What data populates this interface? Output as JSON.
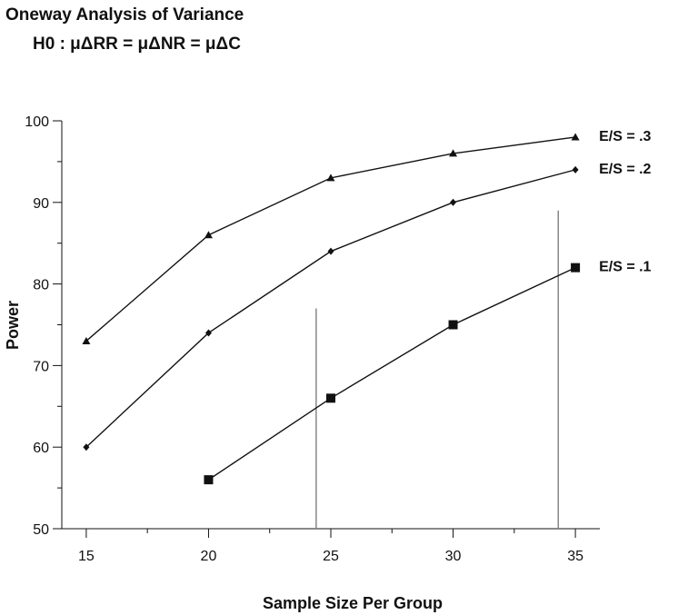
{
  "chart_data": {
    "type": "line",
    "title": "Oneway Analysis of Variance",
    "subtitle": "H0 :  μΔRR = μΔNR = μΔC",
    "xlabel": "Sample Size Per Group",
    "ylabel": "Power",
    "xlim": [
      14,
      36
    ],
    "ylim": [
      50,
      100
    ],
    "x_ticks": [
      15,
      20,
      25,
      30,
      35
    ],
    "y_ticks": [
      50,
      60,
      70,
      80,
      90,
      100
    ],
    "grid": false,
    "series": [
      {
        "name": "E/S = .3",
        "marker": "triangle",
        "x": [
          15,
          20,
          25,
          30,
          35
        ],
        "y": [
          73,
          86,
          93,
          96,
          98
        ]
      },
      {
        "name": "E/S = .2",
        "marker": "diamond",
        "x": [
          15,
          20,
          25,
          30,
          35
        ],
        "y": [
          60,
          74,
          84,
          90,
          94
        ]
      },
      {
        "name": "E/S = .1",
        "marker": "square",
        "x": [
          20,
          25,
          30,
          35
        ],
        "y": [
          56,
          66,
          75,
          82
        ]
      }
    ],
    "reference_lines": [
      {
        "x": 24.4,
        "y_top": 77
      },
      {
        "x": 34.3,
        "y_top": 89
      }
    ],
    "colors": {
      "line": "#111111",
      "reference": "#888888"
    }
  }
}
